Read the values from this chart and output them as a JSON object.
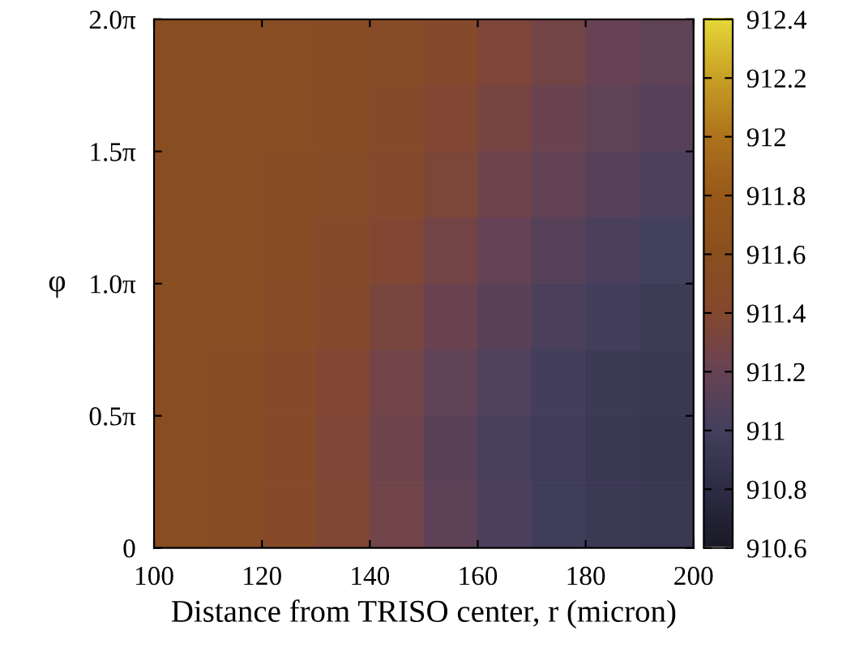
{
  "chart_data": {
    "type": "heatmap",
    "xlabel": "Distance from TRISO center, r (micron)",
    "ylabel": "φ",
    "x": [
      105,
      115,
      125,
      135,
      145,
      155,
      165,
      175,
      185,
      195
    ],
    "xlim": [
      100,
      200
    ],
    "xticks": [
      100,
      120,
      140,
      160,
      180,
      200
    ],
    "ylim": [
      0,
      6.2832
    ],
    "yticks": [
      0,
      {
        "value": 1.5708,
        "label": "0.5π"
      },
      {
        "value": 3.1416,
        "label": "1.0π"
      },
      {
        "value": 4.7124,
        "label": "1.5π"
      },
      {
        "value": 6.2832,
        "label": "2.0π"
      }
    ],
    "cells": [
      [
        911.55,
        911.55,
        911.54,
        911.52,
        911.48,
        911.42,
        911.35,
        911.28,
        911.2,
        911.15
      ],
      [
        911.55,
        911.55,
        911.53,
        911.5,
        911.45,
        911.38,
        911.3,
        911.22,
        911.15,
        911.1
      ],
      [
        911.55,
        911.54,
        911.52,
        911.48,
        911.42,
        911.34,
        911.25,
        911.17,
        911.1,
        911.05
      ],
      [
        911.55,
        911.54,
        911.5,
        911.45,
        911.38,
        911.28,
        911.19,
        911.1,
        911.04,
        911.0
      ],
      [
        911.55,
        911.53,
        911.49,
        911.42,
        911.32,
        911.22,
        911.12,
        911.04,
        910.98,
        910.95
      ],
      [
        911.55,
        911.52,
        911.47,
        911.38,
        911.27,
        911.15,
        911.06,
        910.98,
        910.94,
        910.92
      ],
      [
        911.55,
        911.52,
        911.46,
        911.36,
        911.24,
        911.12,
        911.02,
        910.96,
        910.92,
        910.9
      ],
      [
        911.55,
        911.52,
        911.46,
        911.37,
        911.26,
        911.14,
        911.04,
        910.97,
        910.93,
        910.92
      ]
    ],
    "clim": [
      910.6,
      912.4
    ],
    "cticks": [
      910.6,
      910.8,
      911,
      911.2,
      911.4,
      911.6,
      911.8,
      912,
      912.2,
      912.4
    ]
  }
}
